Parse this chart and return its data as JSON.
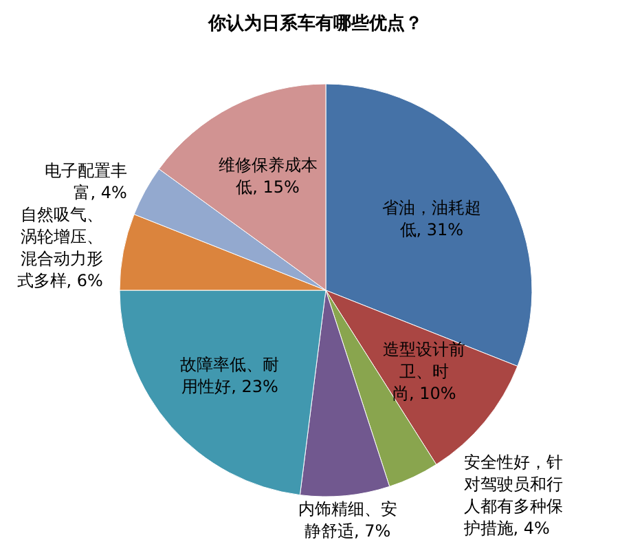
{
  "chart_data": {
    "type": "pie",
    "title": "你认为日系车有哪些优点？",
    "categories": [
      "省油，油耗超低",
      "造型设计前卫、时尚",
      "安全性好，针对驾驶员和行人都有多种保护措施",
      "内饰精细、安静舒适",
      "故障率低、耐用性好",
      "自然吸气、涡轮增压、混合动力形式多样",
      "电子配置丰富",
      "维修保养成本低"
    ],
    "values": [
      31,
      10,
      4,
      7,
      23,
      6,
      4,
      15
    ],
    "value_labels": [
      "31%",
      "10%",
      "4%",
      "7%",
      "23%",
      "6%",
      "4%",
      "15%"
    ],
    "colors": [
      "#4572a7",
      "#aa4643",
      "#89a54e",
      "#71588f",
      "#4198af",
      "#db843d",
      "#93a9cf",
      "#d19392"
    ],
    "legend": false
  }
}
